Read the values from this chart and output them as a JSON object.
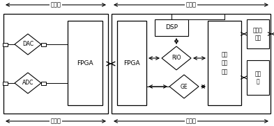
{
  "fig_width": 3.93,
  "fig_height": 1.82,
  "dpi": 100,
  "bg_color": "#ffffff",
  "lc": "#000000",
  "hardware_label": "硬件化",
  "software_label": "软件化",
  "analog_label": "模拟化",
  "digital_label": "数字化",
  "dac_label": "DAC",
  "adc_label": "ADC",
  "fpga1_label": "FPGA",
  "fpga2_label": "FPGA",
  "rio_label": "RIO",
  "dsp_label": "DSP",
  "ge_label": "GE",
  "embed_label": "嵌入\n式处\n理器",
  "ethernet_label": "以太网\n接口",
  "computer_label": "计算\n机",
  "fs_main": 6.5,
  "fs_small": 5.5,
  "fs_label": 6.0
}
